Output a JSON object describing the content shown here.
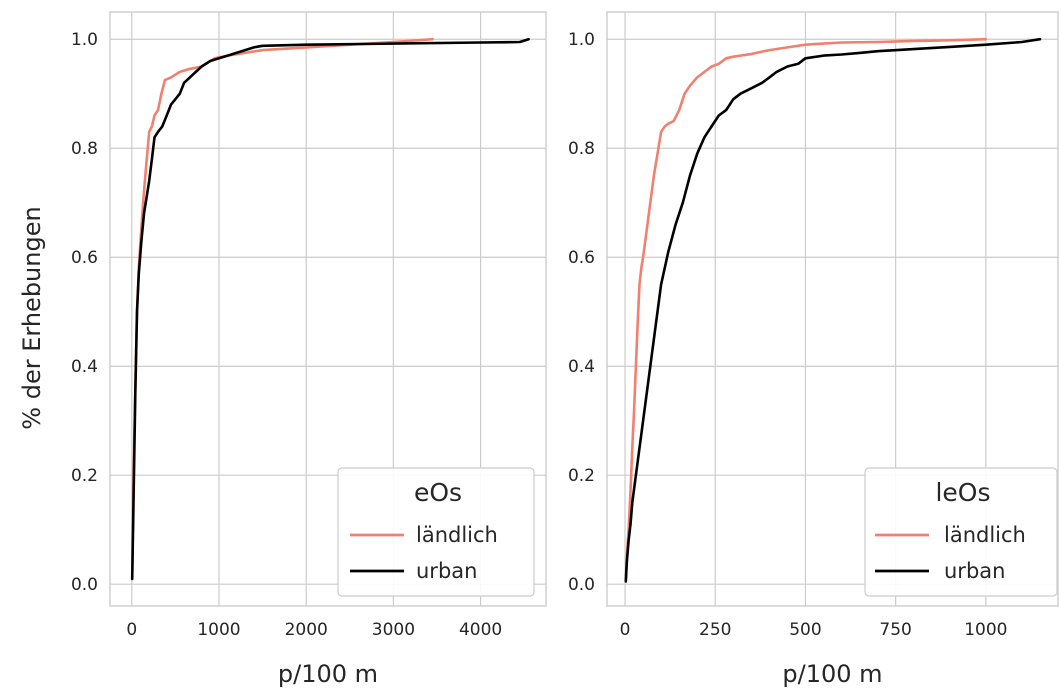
{
  "ylabel": "% der Erhebungen",
  "colors": {
    "laendlich": "#f08070",
    "urban": "#000000"
  },
  "chart_data": [
    {
      "type": "line",
      "xlabel": "p/100 m",
      "xlim": [
        -250,
        4750
      ],
      "ylim": [
        -0.04,
        1.05
      ],
      "xticks": [
        0,
        1000,
        2000,
        3000,
        4000
      ],
      "yticks": [
        0.0,
        0.2,
        0.4,
        0.6,
        0.8,
        1.0
      ],
      "grid": true,
      "legend": {
        "title": "eOs",
        "placement": "bottom-right"
      },
      "series": [
        {
          "name": "ländlich",
          "color": "#f08070",
          "x": [
            5,
            20,
            40,
            60,
            80,
            100,
            130,
            160,
            200,
            230,
            260,
            300,
            340,
            380,
            450,
            550,
            650,
            800,
            950,
            1100,
            1300,
            1500,
            2000,
            2500,
            3000,
            3450
          ],
          "y": [
            0.01,
            0.2,
            0.36,
            0.5,
            0.58,
            0.63,
            0.7,
            0.76,
            0.83,
            0.84,
            0.86,
            0.87,
            0.9,
            0.925,
            0.93,
            0.94,
            0.945,
            0.95,
            0.965,
            0.97,
            0.975,
            0.98,
            0.985,
            0.99,
            0.995,
            1.0
          ]
        },
        {
          "name": "urban",
          "color": "#000000",
          "x": [
            5,
            20,
            40,
            60,
            80,
            110,
            140,
            170,
            200,
            230,
            260,
            300,
            350,
            400,
            450,
            500,
            550,
            600,
            700,
            800,
            900,
            1000,
            1100,
            1200,
            1400,
            1500,
            2000,
            3000,
            4000,
            4450,
            4550
          ],
          "y": [
            0.01,
            0.15,
            0.35,
            0.5,
            0.57,
            0.63,
            0.68,
            0.71,
            0.74,
            0.78,
            0.82,
            0.83,
            0.84,
            0.86,
            0.88,
            0.89,
            0.9,
            0.92,
            0.935,
            0.95,
            0.96,
            0.965,
            0.97,
            0.975,
            0.985,
            0.988,
            0.99,
            0.992,
            0.994,
            0.995,
            1.0
          ]
        }
      ]
    },
    {
      "type": "line",
      "xlabel": "p/100 m",
      "xlim": [
        -50,
        1200
      ],
      "ylim": [
        -0.04,
        1.05
      ],
      "xticks": [
        0,
        250,
        500,
        750,
        1000
      ],
      "yticks": [
        0.0,
        0.2,
        0.4,
        0.6,
        0.8,
        1.0
      ],
      "grid": true,
      "legend": {
        "title": "leOs",
        "placement": "bottom-right"
      },
      "series": [
        {
          "name": "ländlich",
          "color": "#f08070",
          "x": [
            2,
            5,
            10,
            15,
            20,
            25,
            30,
            35,
            40,
            45,
            50,
            60,
            70,
            80,
            90,
            100,
            110,
            120,
            135,
            150,
            165,
            180,
            200,
            220,
            240,
            260,
            280,
            300,
            350,
            400,
            450,
            500,
            550,
            600,
            700,
            800,
            900,
            1000
          ],
          "y": [
            0.01,
            0.05,
            0.1,
            0.17,
            0.25,
            0.32,
            0.4,
            0.48,
            0.55,
            0.58,
            0.6,
            0.65,
            0.7,
            0.75,
            0.79,
            0.83,
            0.84,
            0.845,
            0.85,
            0.87,
            0.9,
            0.915,
            0.93,
            0.94,
            0.95,
            0.955,
            0.965,
            0.968,
            0.973,
            0.98,
            0.985,
            0.99,
            0.992,
            0.994,
            0.995,
            0.997,
            0.998,
            1.0
          ]
        },
        {
          "name": "urban",
          "color": "#000000",
          "x": [
            2,
            5,
            10,
            15,
            20,
            30,
            40,
            50,
            60,
            70,
            80,
            90,
            100,
            110,
            120,
            140,
            160,
            180,
            200,
            220,
            240,
            260,
            280,
            300,
            320,
            350,
            380,
            400,
            420,
            450,
            480,
            500,
            550,
            600,
            650,
            700,
            800,
            900,
            1000,
            1100,
            1150
          ],
          "y": [
            0.005,
            0.04,
            0.08,
            0.11,
            0.15,
            0.2,
            0.25,
            0.3,
            0.35,
            0.4,
            0.45,
            0.5,
            0.55,
            0.58,
            0.61,
            0.66,
            0.7,
            0.75,
            0.79,
            0.82,
            0.84,
            0.86,
            0.87,
            0.89,
            0.9,
            0.91,
            0.92,
            0.93,
            0.94,
            0.95,
            0.955,
            0.965,
            0.97,
            0.972,
            0.975,
            0.978,
            0.982,
            0.986,
            0.99,
            0.995,
            1.0
          ]
        }
      ]
    }
  ]
}
